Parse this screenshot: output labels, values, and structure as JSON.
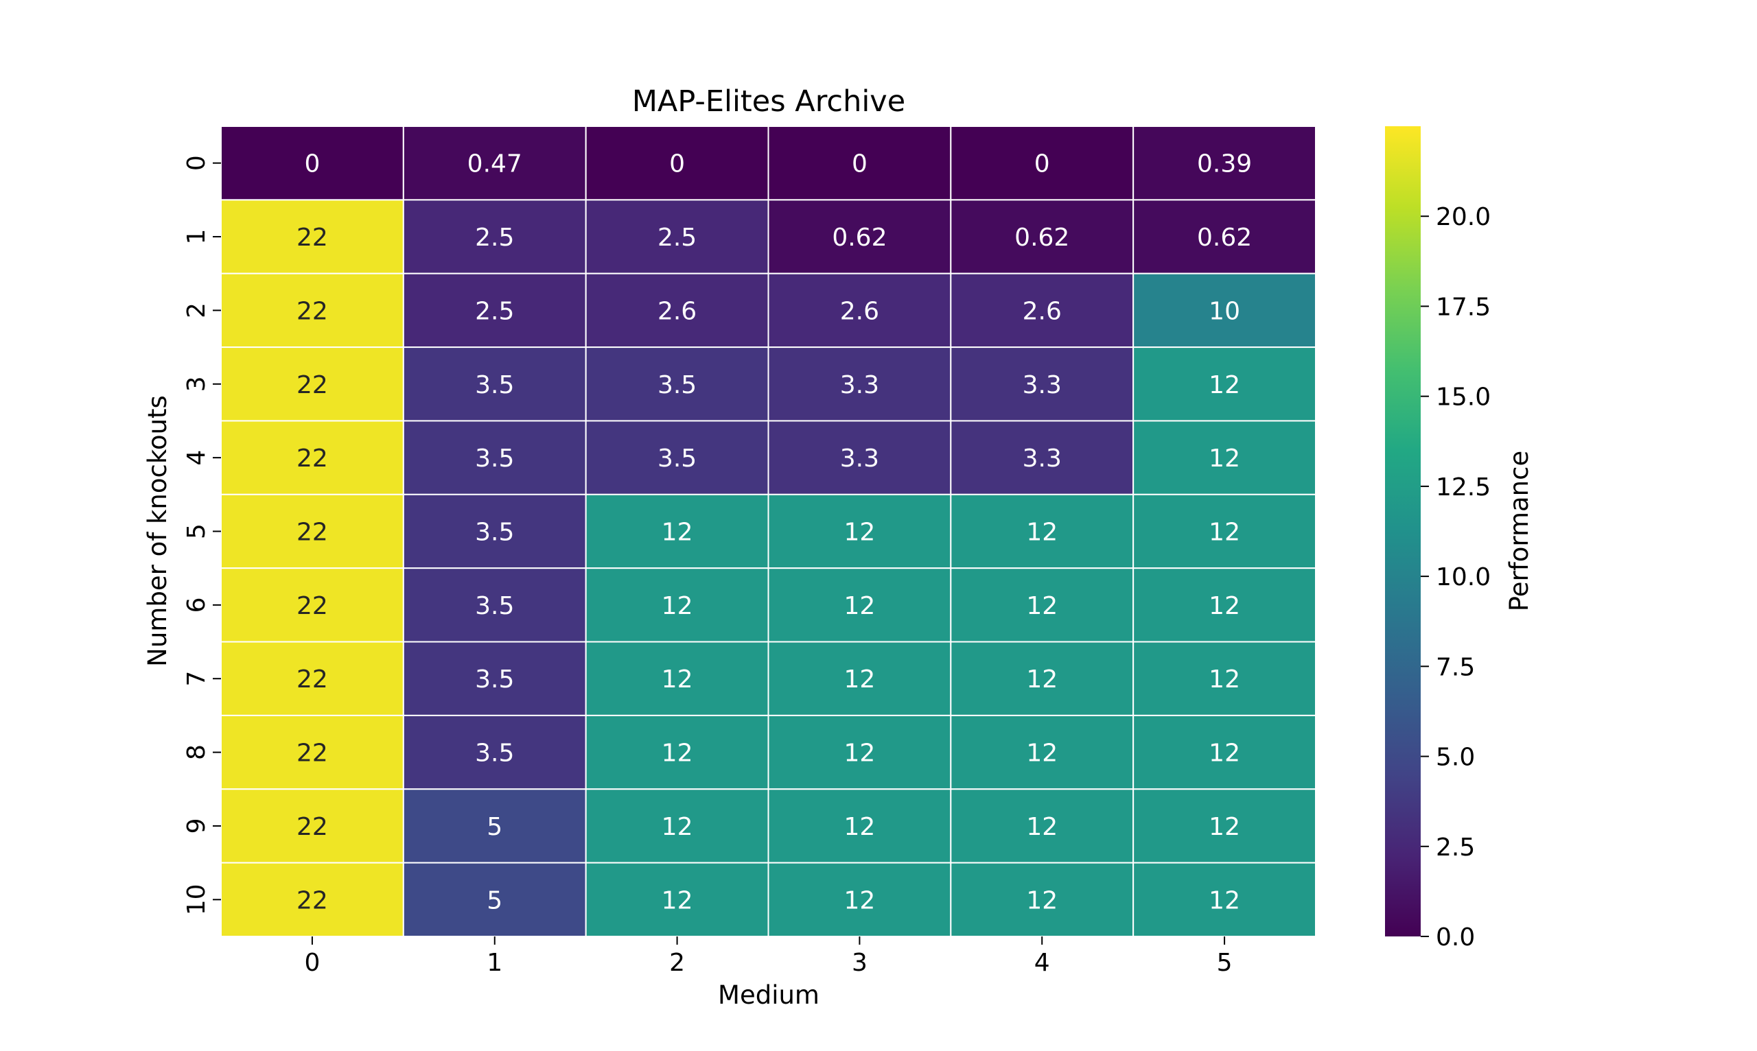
{
  "chart_data": {
    "type": "heatmap",
    "title": "MAP-Elites Archive",
    "xlabel": "Medium",
    "ylabel": "Number of knockouts",
    "x_categories": [
      "0",
      "1",
      "2",
      "3",
      "4",
      "5"
    ],
    "y_categories": [
      "0",
      "1",
      "2",
      "3",
      "4",
      "5",
      "6",
      "7",
      "8",
      "9",
      "10"
    ],
    "values": [
      [
        0,
        0.47,
        0,
        0,
        0,
        0.39
      ],
      [
        22,
        2.5,
        2.5,
        0.62,
        0.62,
        0.62
      ],
      [
        22,
        2.5,
        2.6,
        2.6,
        2.6,
        10
      ],
      [
        22,
        3.5,
        3.5,
        3.3,
        3.3,
        12
      ],
      [
        22,
        3.5,
        3.5,
        3.3,
        3.3,
        12
      ],
      [
        22,
        3.5,
        12,
        12,
        12,
        12
      ],
      [
        22,
        3.5,
        12,
        12,
        12,
        12
      ],
      [
        22,
        3.5,
        12,
        12,
        12,
        12
      ],
      [
        22,
        3.5,
        12,
        12,
        12,
        12
      ],
      [
        22,
        5,
        12,
        12,
        12,
        12
      ],
      [
        22,
        5,
        12,
        12,
        12,
        12
      ]
    ],
    "cell_labels": [
      [
        "0",
        "0.47",
        "0",
        "0",
        "0",
        "0.39"
      ],
      [
        "22",
        "2.5",
        "2.5",
        "0.62",
        "0.62",
        "0.62"
      ],
      [
        "22",
        "2.5",
        "2.6",
        "2.6",
        "2.6",
        "10"
      ],
      [
        "22",
        "3.5",
        "3.5",
        "3.3",
        "3.3",
        "12"
      ],
      [
        "22",
        "3.5",
        "3.5",
        "3.3",
        "3.3",
        "12"
      ],
      [
        "22",
        "3.5",
        "12",
        "12",
        "12",
        "12"
      ],
      [
        "22",
        "3.5",
        "12",
        "12",
        "12",
        "12"
      ],
      [
        "22",
        "3.5",
        "12",
        "12",
        "12",
        "12"
      ],
      [
        "22",
        "3.5",
        "12",
        "12",
        "12",
        "12"
      ],
      [
        "22",
        "5",
        "12",
        "12",
        "12",
        "12"
      ],
      [
        "22",
        "5",
        "12",
        "12",
        "12",
        "12"
      ]
    ],
    "colormap": "viridis",
    "vmin": 0,
    "vmax": 22.5,
    "colorbar": {
      "label": "Performance",
      "ticks": [
        0,
        2.5,
        5,
        7.5,
        10,
        12.5,
        15,
        17.5,
        20
      ],
      "tick_labels": [
        "0.0",
        "2.5",
        "5.0",
        "7.5",
        "10.0",
        "12.5",
        "15.0",
        "17.5",
        "20.0"
      ]
    },
    "cell_border_color": "#ffffff"
  }
}
